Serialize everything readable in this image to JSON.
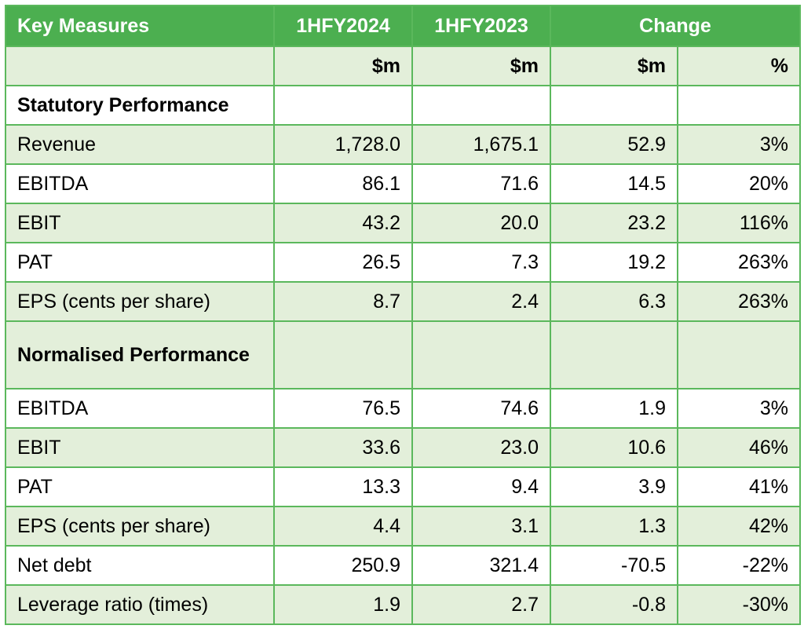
{
  "header": {
    "col0": "Key Measures",
    "col1": "1HFY2024",
    "col2": "1HFY2023",
    "col3": "Change"
  },
  "units": {
    "col1": "$m",
    "col2": "$m",
    "col3": "$m",
    "col4": "%"
  },
  "sections": {
    "statutory": "Statutory Performance",
    "normalised": "Normalised Performance"
  },
  "statutory_rows": [
    {
      "label": "Revenue",
      "fy24": "1,728.0",
      "fy23": "1,675.1",
      "change": "52.9",
      "pct": "3%"
    },
    {
      "label": "EBITDA",
      "fy24": "86.1",
      "fy23": "71.6",
      "change": "14.5",
      "pct": "20%"
    },
    {
      "label": "EBIT",
      "fy24": "43.2",
      "fy23": "20.0",
      "change": "23.2",
      "pct": "116%"
    },
    {
      "label": "PAT",
      "fy24": "26.5",
      "fy23": "7.3",
      "change": "19.2",
      "pct": "263%"
    },
    {
      "label": "EPS (cents per share)",
      "fy24": "8.7",
      "fy23": "2.4",
      "change": "6.3",
      "pct": "263%"
    }
  ],
  "normalised_rows": [
    {
      "label": "EBITDA",
      "fy24": "76.5",
      "fy23": "74.6",
      "change": "1.9",
      "pct": "3%"
    },
    {
      "label": "EBIT",
      "fy24": "33.6",
      "fy23": "23.0",
      "change": "10.6",
      "pct": "46%"
    },
    {
      "label": "PAT",
      "fy24": "13.3",
      "fy23": "9.4",
      "change": "3.9",
      "pct": "41%"
    },
    {
      "label": "EPS (cents per share)",
      "fy24": "4.4",
      "fy23": "3.1",
      "change": "1.3",
      "pct": "42%"
    },
    {
      "label": "Net debt",
      "fy24": "250.9",
      "fy23": "321.4",
      "change": "-70.5",
      "pct": "-22%"
    },
    {
      "label": "Leverage ratio (times)",
      "fy24": "1.9",
      "fy23": "2.7",
      "change": "-0.8",
      "pct": "-30%"
    }
  ],
  "colors": {
    "header_bg": "#4caf50",
    "border": "#5bb85c",
    "shade": "#e3efda"
  }
}
